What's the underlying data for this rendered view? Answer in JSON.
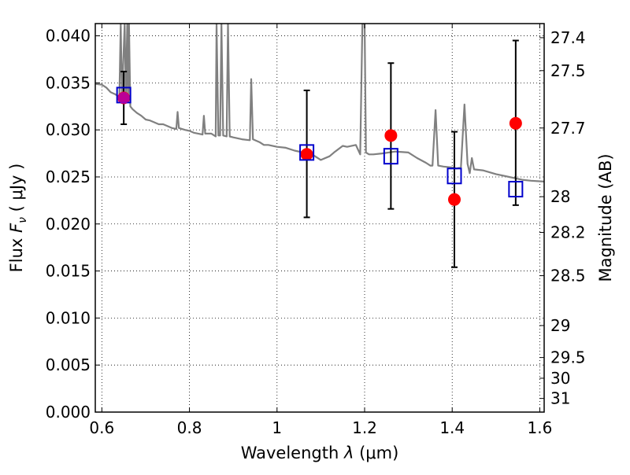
{
  "chart_data": {
    "type": "scatter",
    "xlabel": "Wavelength",
    "xlabel_symbol": "λ",
    "xlabel_unit": "(μm)",
    "ylabel": "Flux",
    "ylabel_symbol": "F",
    "ylabel_subscript": "ν",
    "ylabel_unit": "( μJy )",
    "y2label": "Magnitude (AB)",
    "xlim": [
      0.585,
      1.61
    ],
    "ylim": [
      0.0,
      0.0413
    ],
    "grid": true,
    "grid_style": "dotted",
    "x_ticks": [
      {
        "value": 0.6,
        "label": "0.6"
      },
      {
        "value": 0.8,
        "label": "0.8"
      },
      {
        "value": 1.0,
        "label": "1"
      },
      {
        "value": 1.2,
        "label": "1.2"
      },
      {
        "value": 1.4,
        "label": "1.4"
      },
      {
        "value": 1.6,
        "label": "1.6"
      }
    ],
    "y_ticks": [
      {
        "value": 0.0,
        "label": "0.000"
      },
      {
        "value": 0.005,
        "label": "0.005"
      },
      {
        "value": 0.01,
        "label": "0.010"
      },
      {
        "value": 0.015,
        "label": "0.015"
      },
      {
        "value": 0.02,
        "label": "0.020"
      },
      {
        "value": 0.025,
        "label": "0.025"
      },
      {
        "value": 0.03,
        "label": "0.030"
      },
      {
        "value": 0.035,
        "label": "0.035"
      },
      {
        "value": 0.04,
        "label": "0.040"
      }
    ],
    "y2_ticks": [
      {
        "label": "27.4",
        "flux": 0.0398
      },
      {
        "label": "27.5",
        "flux": 0.0363
      },
      {
        "label": "27.7",
        "flux": 0.0302
      },
      {
        "label": "28",
        "flux": 0.0229
      },
      {
        "label": "28.2",
        "flux": 0.0191
      },
      {
        "label": "28.5",
        "flux": 0.0145
      },
      {
        "label": "29",
        "flux": 0.0092
      },
      {
        "label": "29.5",
        "flux": 0.0058
      },
      {
        "label": "30",
        "flux": 0.0036
      },
      {
        "label": "31",
        "flux": 0.00145
      }
    ],
    "series": [
      {
        "kind": "model-sed-line",
        "color": "#808080",
        "points": [
          [
            0.585,
            0.0349
          ],
          [
            0.6,
            0.0348
          ],
          [
            0.61,
            0.0345
          ],
          [
            0.62,
            0.034
          ],
          [
            0.63,
            0.0338
          ],
          [
            0.64,
            0.0335
          ],
          [
            0.643,
            0.0413
          ],
          [
            0.646,
            0.0334
          ],
          [
            0.652,
            0.0413
          ],
          [
            0.655,
            0.0332
          ],
          [
            0.658,
            0.0413
          ],
          [
            0.66,
            0.033
          ],
          [
            0.662,
            0.0413
          ],
          [
            0.665,
            0.0325
          ],
          [
            0.67,
            0.0322
          ],
          [
            0.68,
            0.0318
          ],
          [
            0.69,
            0.0315
          ],
          [
            0.7,
            0.0311
          ],
          [
            0.71,
            0.031
          ],
          [
            0.72,
            0.0308
          ],
          [
            0.73,
            0.0306
          ],
          [
            0.74,
            0.0306
          ],
          [
            0.75,
            0.0304
          ],
          [
            0.76,
            0.0302
          ],
          [
            0.77,
            0.0301
          ],
          [
            0.773,
            0.0319
          ],
          [
            0.776,
            0.0302
          ],
          [
            0.79,
            0.03
          ],
          [
            0.8,
            0.0299
          ],
          [
            0.81,
            0.0297
          ],
          [
            0.82,
            0.0296
          ],
          [
            0.83,
            0.0295
          ],
          [
            0.833,
            0.0315
          ],
          [
            0.836,
            0.0296
          ],
          [
            0.85,
            0.0296
          ],
          [
            0.86,
            0.0293
          ],
          [
            0.862,
            0.0413
          ],
          [
            0.866,
            0.0294
          ],
          [
            0.87,
            0.0294
          ],
          [
            0.873,
            0.0413
          ],
          [
            0.877,
            0.0294
          ],
          [
            0.885,
            0.0293
          ],
          [
            0.888,
            0.0413
          ],
          [
            0.892,
            0.0293
          ],
          [
            0.9,
            0.0292
          ],
          [
            0.92,
            0.029
          ],
          [
            0.938,
            0.0289
          ],
          [
            0.941,
            0.0354
          ],
          [
            0.945,
            0.029
          ],
          [
            0.96,
            0.0287
          ],
          [
            0.97,
            0.0284
          ],
          [
            0.98,
            0.0284
          ],
          [
            1.0,
            0.0282
          ],
          [
            1.02,
            0.0281
          ],
          [
            1.04,
            0.0278
          ],
          [
            1.06,
            0.0276
          ],
          [
            1.08,
            0.0274
          ],
          [
            1.1,
            0.0268
          ],
          [
            1.12,
            0.0272
          ],
          [
            1.13,
            0.0276
          ],
          [
            1.15,
            0.0283
          ],
          [
            1.16,
            0.0282
          ],
          [
            1.18,
            0.0284
          ],
          [
            1.19,
            0.0274
          ],
          [
            1.195,
            0.0413
          ],
          [
            1.2,
            0.0413
          ],
          [
            1.203,
            0.0276
          ],
          [
            1.21,
            0.0274
          ],
          [
            1.22,
            0.0274
          ],
          [
            1.24,
            0.0275
          ],
          [
            1.27,
            0.0277
          ],
          [
            1.3,
            0.0276
          ],
          [
            1.32,
            0.027
          ],
          [
            1.34,
            0.0265
          ],
          [
            1.35,
            0.0262
          ],
          [
            1.355,
            0.0262
          ],
          [
            1.362,
            0.0321
          ],
          [
            1.368,
            0.0262
          ],
          [
            1.38,
            0.0261
          ],
          [
            1.4,
            0.026
          ],
          [
            1.41,
            0.0259
          ],
          [
            1.42,
            0.026
          ],
          [
            1.428,
            0.0327
          ],
          [
            1.435,
            0.0264
          ],
          [
            1.44,
            0.0254
          ],
          [
            1.445,
            0.027
          ],
          [
            1.45,
            0.0258
          ],
          [
            1.47,
            0.0257
          ],
          [
            1.5,
            0.0253
          ],
          [
            1.53,
            0.025
          ],
          [
            1.56,
            0.0247
          ],
          [
            1.58,
            0.0246
          ],
          [
            1.61,
            0.0245
          ]
        ]
      },
      {
        "kind": "observed-points",
        "color": "#ff0000",
        "points": [
          {
            "x": 0.65,
            "y": 0.0334,
            "yerr_low": 0.0306,
            "yerr_high": 0.0362
          },
          {
            "x": 1.068,
            "y": 0.0274,
            "yerr_low": 0.0207,
            "yerr_high": 0.0342
          },
          {
            "x": 1.26,
            "y": 0.0294,
            "yerr_low": 0.0216,
            "yerr_high": 0.0371
          },
          {
            "x": 1.405,
            "y": 0.0226,
            "yerr_low": 0.0154,
            "yerr_high": 0.0298
          },
          {
            "x": 1.545,
            "y": 0.0307,
            "yerr_low": 0.022,
            "yerr_high": 0.0395
          }
        ]
      },
      {
        "kind": "model-photometry-squares",
        "color": "#0000cc",
        "points": [
          {
            "x": 0.65,
            "y": 0.0337
          },
          {
            "x": 1.068,
            "y": 0.0276
          },
          {
            "x": 1.26,
            "y": 0.0272
          },
          {
            "x": 1.405,
            "y": 0.0251
          },
          {
            "x": 1.545,
            "y": 0.0237
          }
        ]
      }
    ],
    "overlap_color": "#b000b0"
  }
}
